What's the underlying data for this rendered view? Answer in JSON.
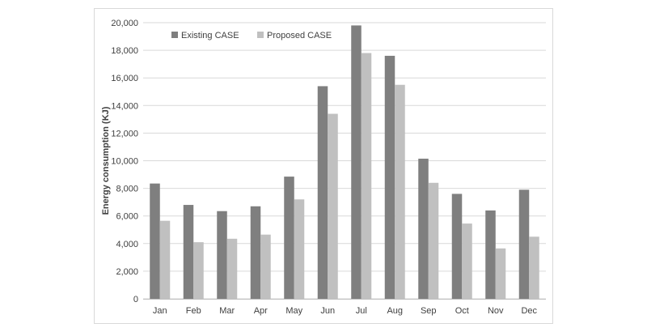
{
  "chart_data": {
    "type": "bar",
    "title": "",
    "xlabel": "",
    "ylabel": "Energy consumption (KJ)",
    "categories": [
      "Jan",
      "Feb",
      "Mar",
      "Apr",
      "May",
      "Jun",
      "Jul",
      "Aug",
      "Sep",
      "Oct",
      "Nov",
      "Dec"
    ],
    "series": [
      {
        "name": "Existing CASE",
        "color": "#7f7f7f",
        "values": [
          8350,
          6800,
          6350,
          6700,
          8850,
          15400,
          19800,
          17600,
          10150,
          7600,
          6400,
          7900
        ]
      },
      {
        "name": "Proposed CASE",
        "color": "#c0c0c0",
        "values": [
          5650,
          4100,
          4350,
          4650,
          7200,
          13400,
          17800,
          15500,
          8400,
          5450,
          3650,
          4500
        ]
      }
    ],
    "ylim": [
      0,
      20000
    ],
    "yticks": [
      "0",
      "2,000",
      "4,000",
      "6,000",
      "8,000",
      "10,000",
      "12,000",
      "14,000",
      "16,000",
      "18,000",
      "20,000"
    ],
    "grid": true,
    "legend": "top-left"
  }
}
